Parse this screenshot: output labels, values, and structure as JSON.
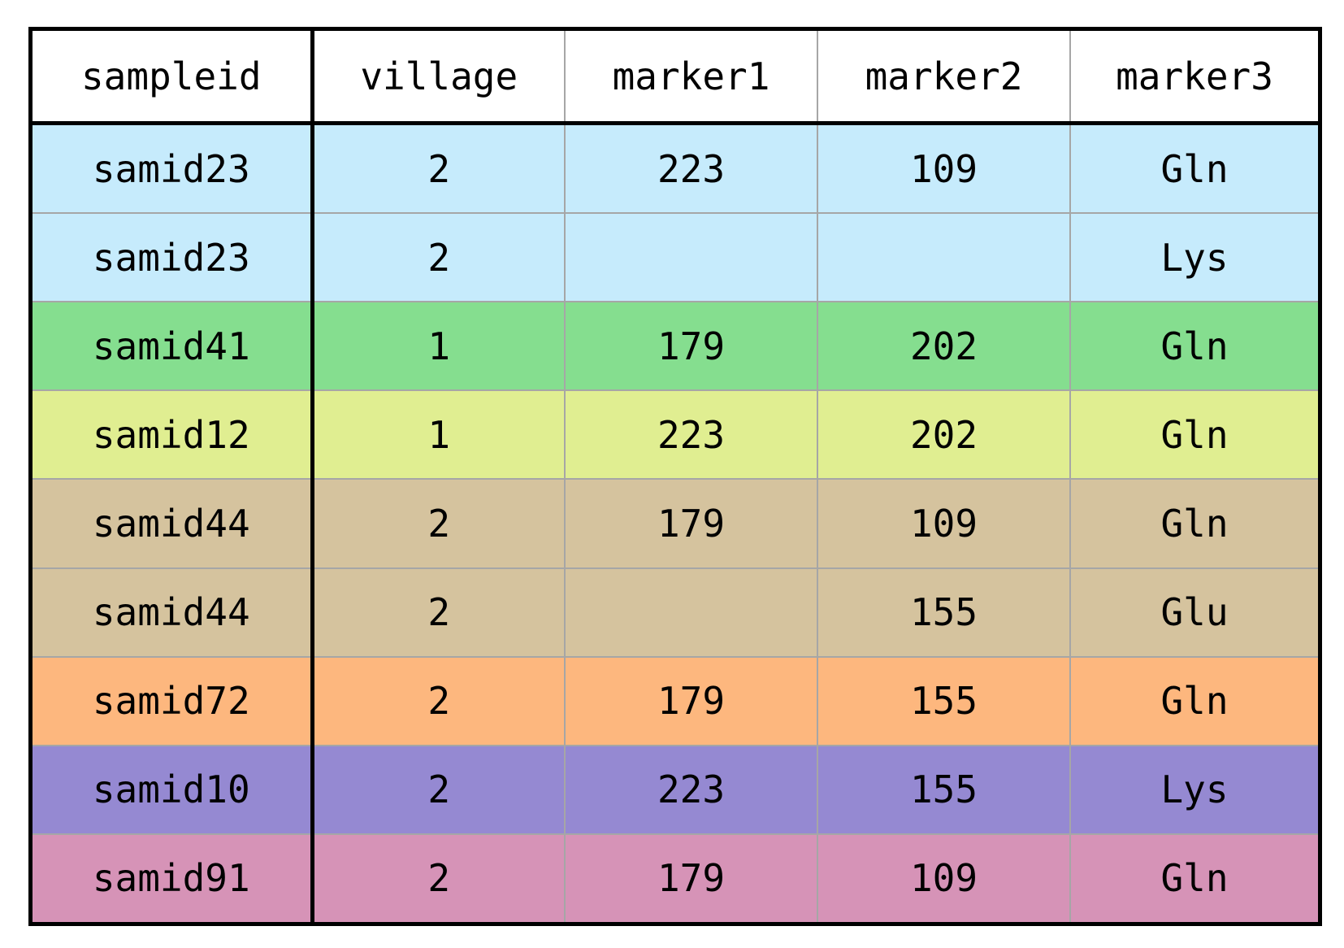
{
  "chart_data": {
    "type": "table",
    "columns": [
      "sampleid",
      "village",
      "marker1",
      "marker2",
      "marker3"
    ],
    "rows": [
      {
        "cells": [
          "samid23",
          "2",
          "223",
          "109",
          "Gln"
        ],
        "color": "#c6ebfc"
      },
      {
        "cells": [
          "samid23",
          "2",
          "",
          "",
          "Lys"
        ],
        "color": "#c6ebfc"
      },
      {
        "cells": [
          "samid41",
          "1",
          "179",
          "202",
          "Gln"
        ],
        "color": "#85de8f"
      },
      {
        "cells": [
          "samid12",
          "1",
          "223",
          "202",
          "Gln"
        ],
        "color": "#e0ee91"
      },
      {
        "cells": [
          "samid44",
          "2",
          "179",
          "109",
          "Gln"
        ],
        "color": "#d5c39e"
      },
      {
        "cells": [
          "samid44",
          "2",
          "",
          "155",
          "Glu"
        ],
        "color": "#d5c39e"
      },
      {
        "cells": [
          "samid72",
          "2",
          "179",
          "155",
          "Gln"
        ],
        "color": "#fdb77e"
      },
      {
        "cells": [
          "samid10",
          "2",
          "223",
          "155",
          "Lys"
        ],
        "color": "#9589d2"
      },
      {
        "cells": [
          "samid91",
          "2",
          "179",
          "109",
          "Gln"
        ],
        "color": "#d693b7"
      }
    ]
  }
}
